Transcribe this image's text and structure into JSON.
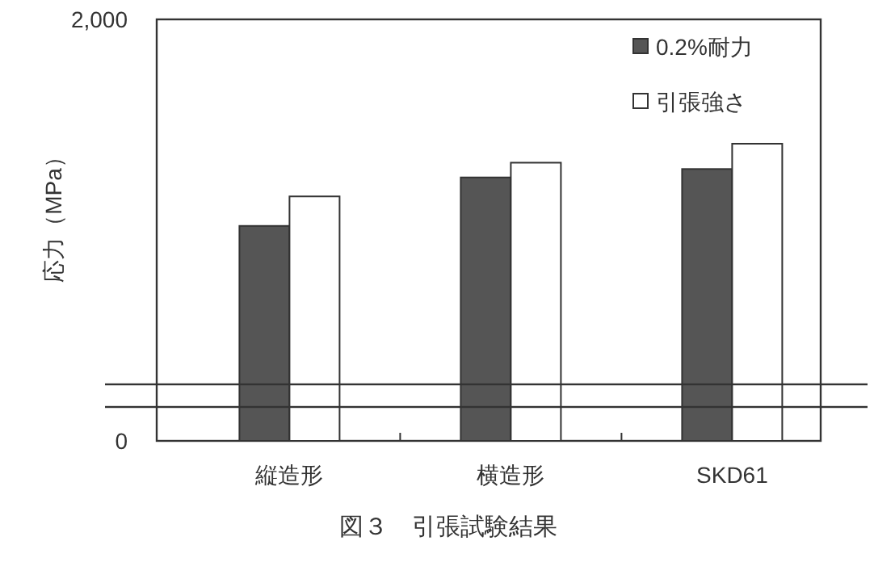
{
  "chart_data": {
    "type": "bar",
    "title": "図３　引張試験結果",
    "ylabel": "応力（MPa）",
    "categories": [
      "縦造形",
      "横造形",
      "SKD61"
    ],
    "series": [
      {
        "name": "0.2%耐力",
        "color": "#555555",
        "values": [
          1020,
          1250,
          1290
        ]
      },
      {
        "name": "引張強さ",
        "color": "#ffffff",
        "values": [
          1160,
          1320,
          1410
        ]
      }
    ],
    "ylim": [
      0,
      2000
    ],
    "yticks": [
      0,
      {
        "value": 2000,
        "label": "2,000"
      }
    ],
    "legend": "top right"
  }
}
